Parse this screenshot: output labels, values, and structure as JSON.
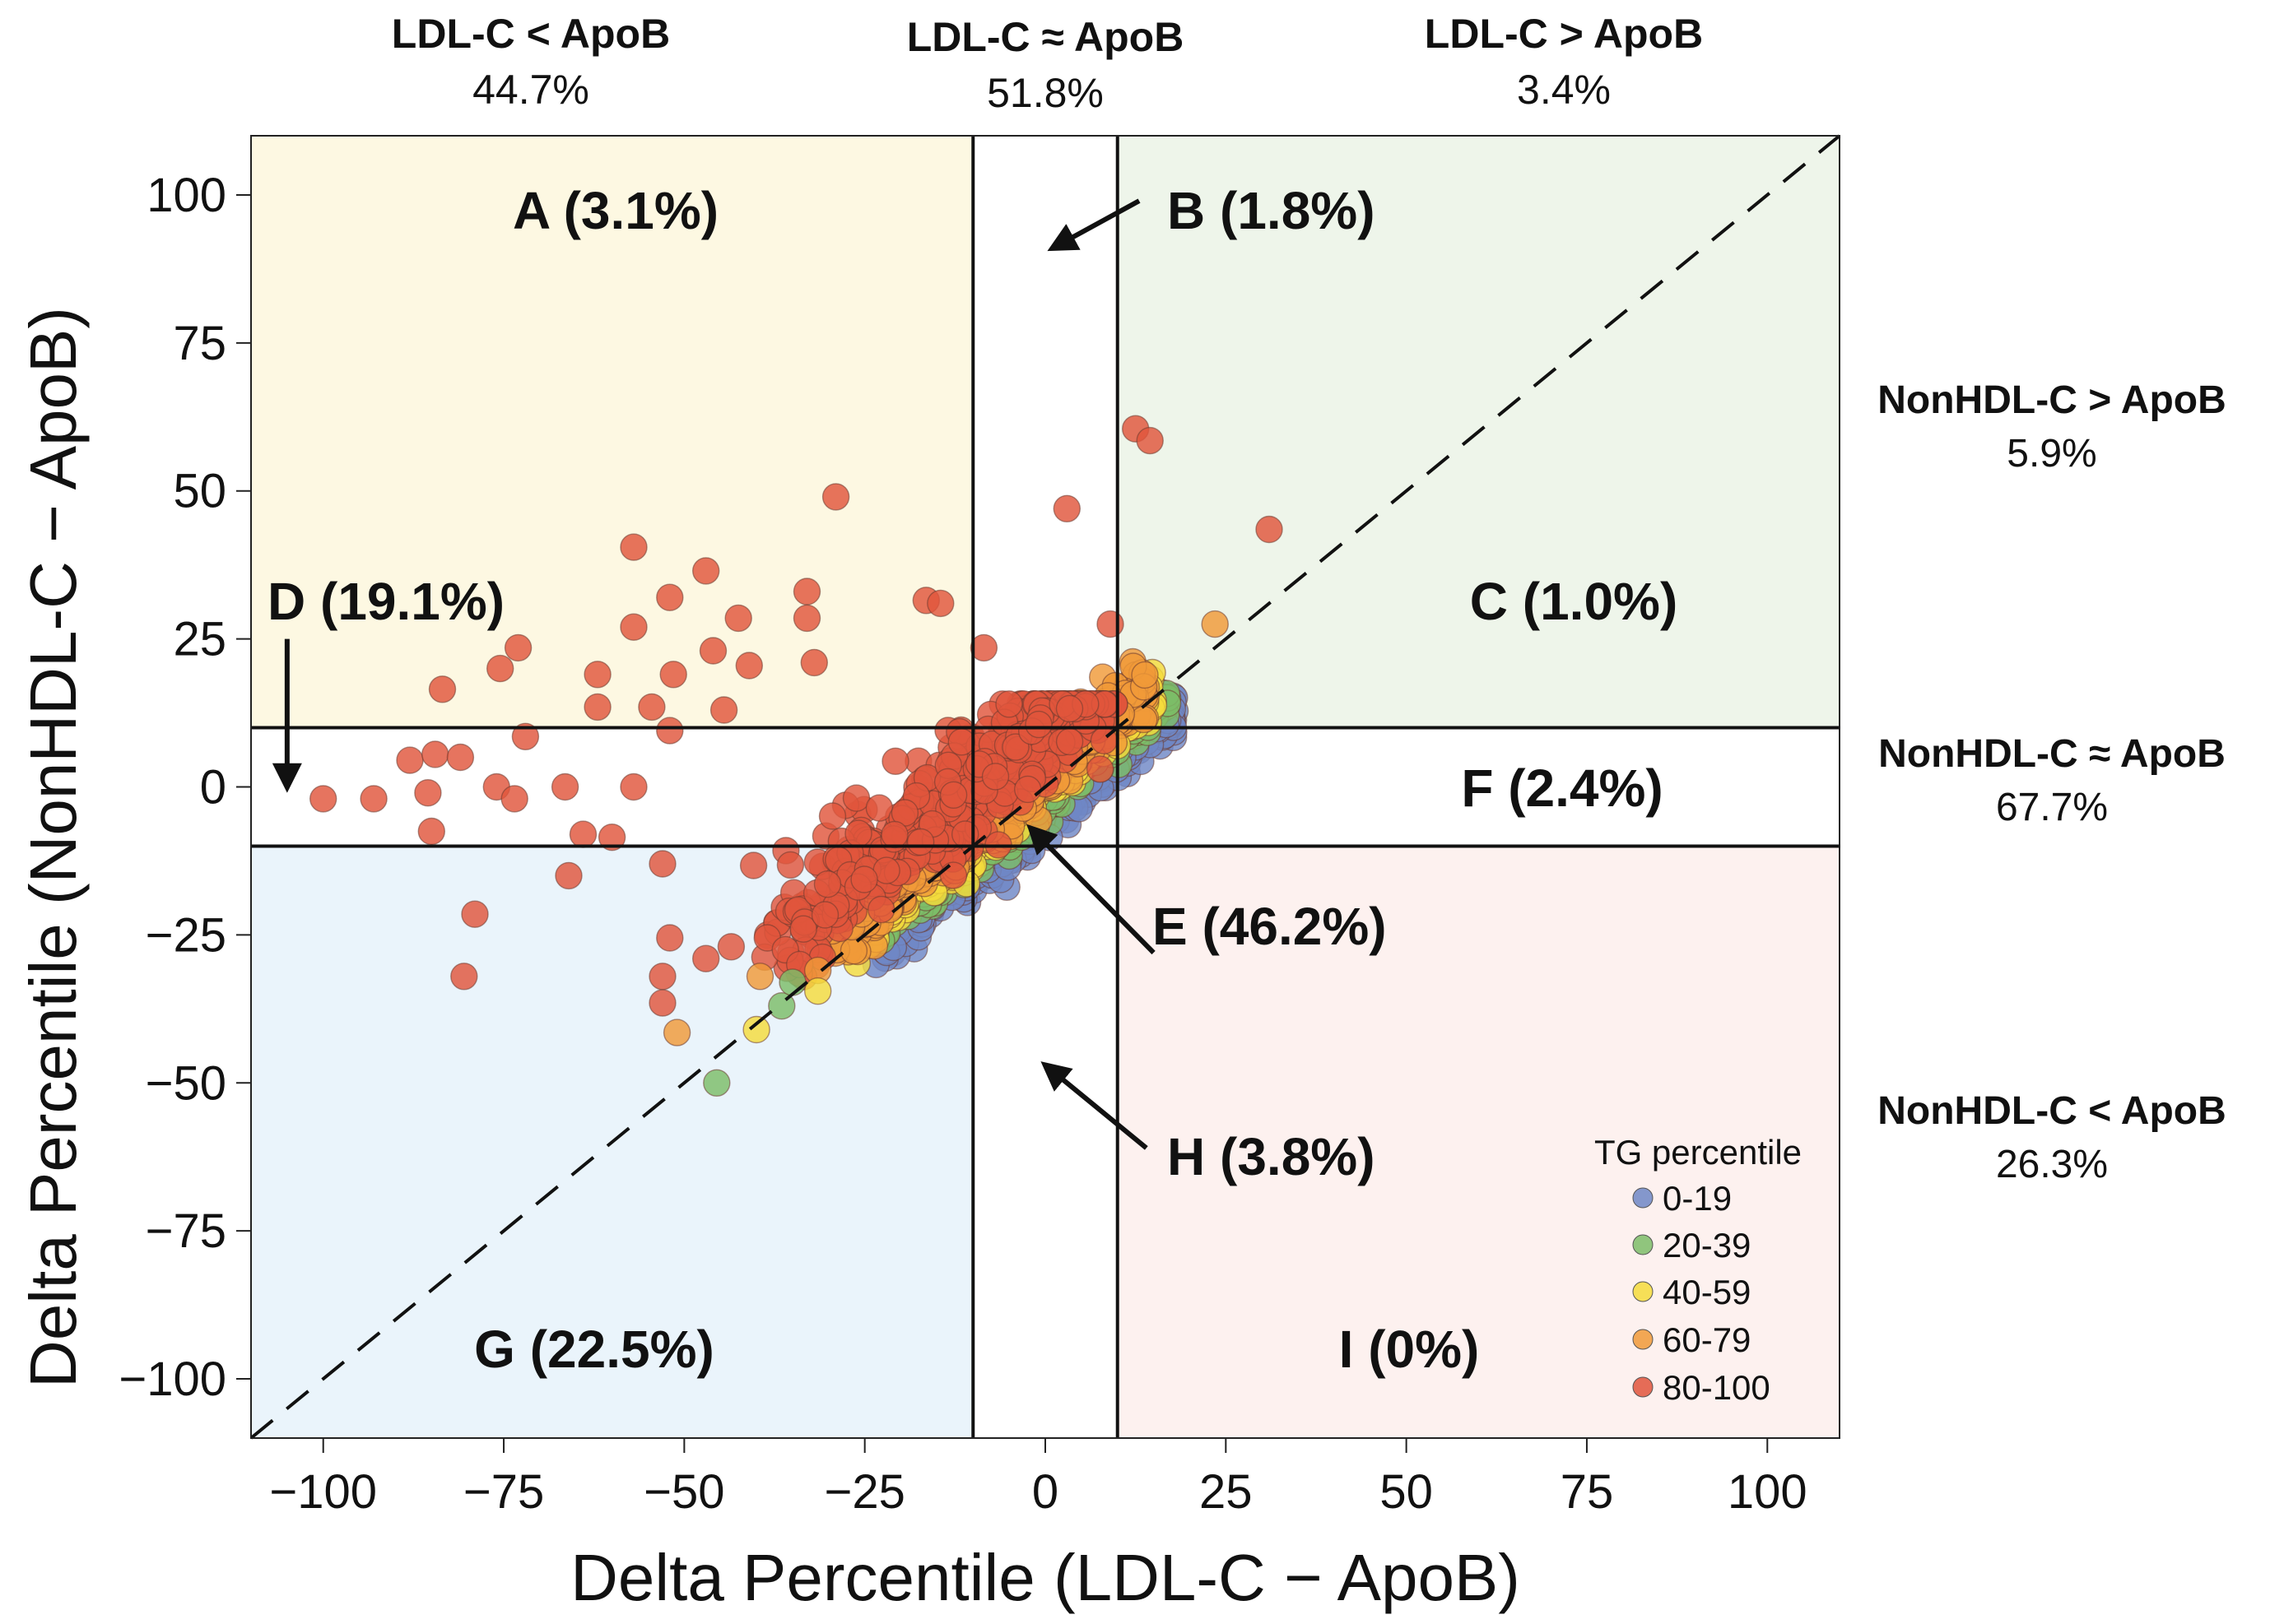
{
  "chart_data": {
    "type": "scatter",
    "xlabel": "Delta Percentile (LDL-C − ApoB)",
    "ylabel": "Delta Percentile (NonHDL-C − ApoB)",
    "xlim": [
      -110,
      110
    ],
    "ylim": [
      -110,
      110
    ],
    "xticks": [
      -100,
      -75,
      -50,
      -25,
      0,
      25,
      50,
      75,
      100
    ],
    "yticks": [
      100,
      75,
      50,
      25,
      0,
      -25,
      -50,
      -75,
      -100
    ],
    "x_cutoffs": [
      -10,
      10
    ],
    "y_cutoffs": [
      -10,
      10
    ],
    "identity_line": true,
    "column_headers": [
      {
        "label": "LDL-C < ApoB",
        "pct": "44.7%"
      },
      {
        "label": "LDL-C ≈ ApoB",
        "pct": "51.8%"
      },
      {
        "label": "LDL-C > ApoB",
        "pct": "3.4%"
      }
    ],
    "row_headers": [
      {
        "label": "NonHDL-C > ApoB",
        "pct": "5.9%"
      },
      {
        "label": "NonHDL-C ≈ ApoB",
        "pct": "67.7%"
      },
      {
        "label": "NonHDL-C < ApoB",
        "pct": "26.3%"
      }
    ],
    "regions": [
      {
        "id": "A",
        "label": "A (3.1%)",
        "fill": "#fdf8e2"
      },
      {
        "id": "B",
        "label": "B (1.8%)",
        "fill": "#ffffff"
      },
      {
        "id": "C",
        "label": "C (1.0%)",
        "fill": "#eef5ea"
      },
      {
        "id": "D",
        "label": "D (19.1%)",
        "fill": "#ffffff"
      },
      {
        "id": "E",
        "label": "E (46.2%)",
        "fill": "#ffffff"
      },
      {
        "id": "F",
        "label": "F (2.4%)",
        "fill": "#ffffff"
      },
      {
        "id": "G",
        "label": "G (22.5%)",
        "fill": "#eaf4fb"
      },
      {
        "id": "H",
        "label": "H (3.8%)",
        "fill": "#ffffff"
      },
      {
        "id": "I",
        "label": "I (0%)",
        "fill": "#fdf1ef"
      }
    ],
    "legend": {
      "title": "TG percentile",
      "position": "bottom-right",
      "items": [
        {
          "label": "0-19",
          "color": "#6f87c6"
        },
        {
          "label": "20-39",
          "color": "#7dbd68"
        },
        {
          "label": "40-59",
          "color": "#f5dc3c"
        },
        {
          "label": "60-79",
          "color": "#f09a38"
        },
        {
          "label": "80-100",
          "color": "#e0553c"
        }
      ]
    },
    "outlier_points": [
      [
        12.5,
        60.5,
        4
      ],
      [
        14.5,
        58.5,
        4
      ],
      [
        3,
        47,
        4
      ],
      [
        31,
        43.5,
        4
      ],
      [
        -29,
        49,
        4
      ],
      [
        -57,
        40.5,
        4
      ],
      [
        -47,
        36.5,
        4
      ],
      [
        -33,
        33,
        4
      ],
      [
        -52,
        32,
        4
      ],
      [
        -16.5,
        31.5,
        4
      ],
      [
        -14.5,
        31,
        4
      ],
      [
        -57,
        27,
        4
      ],
      [
        -42.5,
        28.5,
        4
      ],
      [
        -33,
        28.5,
        4
      ],
      [
        -73,
        23.5,
        4
      ],
      [
        -46,
        23,
        4
      ],
      [
        -75.5,
        20,
        4
      ],
      [
        -62,
        19,
        4
      ],
      [
        -51.5,
        19,
        4
      ],
      [
        -41,
        20.5,
        4
      ],
      [
        -32,
        21,
        4
      ],
      [
        -83.5,
        16.5,
        4
      ],
      [
        -62,
        13.5,
        4
      ],
      [
        -54.5,
        13.5,
        4
      ],
      [
        -44.5,
        13,
        4
      ],
      [
        -8.5,
        23.5,
        4
      ],
      [
        9,
        27.5,
        4
      ],
      [
        -72,
        8.5,
        4
      ],
      [
        -52,
        9.5,
        4
      ],
      [
        -88,
        4.5,
        4
      ],
      [
        -84.5,
        5.5,
        4
      ],
      [
        -81,
        5,
        4
      ],
      [
        -100,
        -2,
        4
      ],
      [
        -93,
        -2,
        4
      ],
      [
        -85.5,
        -1,
        4
      ],
      [
        -76,
        0,
        4
      ],
      [
        -66.5,
        0,
        4
      ],
      [
        -57,
        0,
        4
      ],
      [
        -73.5,
        -2,
        4
      ],
      [
        -64,
        -8,
        4
      ],
      [
        -60,
        -8.5,
        4
      ],
      [
        -66,
        -15,
        4
      ],
      [
        -85,
        -7.5,
        4
      ],
      [
        -79,
        -21.5,
        4
      ],
      [
        -80.5,
        -32,
        4
      ],
      [
        -53,
        -13,
        4
      ],
      [
        -52,
        -25.5,
        4
      ],
      [
        -53,
        -32,
        4
      ],
      [
        -53,
        -36.5,
        4
      ],
      [
        -47,
        -29,
        4
      ],
      [
        -43.5,
        -27,
        4
      ],
      [
        -38.5,
        -25.5,
        4
      ],
      [
        -36,
        -27.5,
        4
      ],
      [
        -34,
        -30,
        4
      ],
      [
        23.5,
        27.5,
        3
      ],
      [
        -51,
        -41.5,
        3
      ],
      [
        -39.5,
        -32,
        3
      ],
      [
        -31.5,
        -31,
        3
      ],
      [
        -40,
        -41,
        2
      ],
      [
        -31.5,
        -34.5,
        2
      ],
      [
        -45.5,
        -50,
        1
      ],
      [
        -36.5,
        -37,
        1
      ],
      [
        -35,
        -33,
        1
      ]
    ],
    "dense_cluster": {
      "description": "~2000 points concentrated along the identity line between x≈-35 and x≈18, colored by TG percentile band (higher TG above the line, lower TG below)",
      "x_range": [
        -35,
        18
      ],
      "y_range": [
        -30,
        15
      ]
    }
  }
}
